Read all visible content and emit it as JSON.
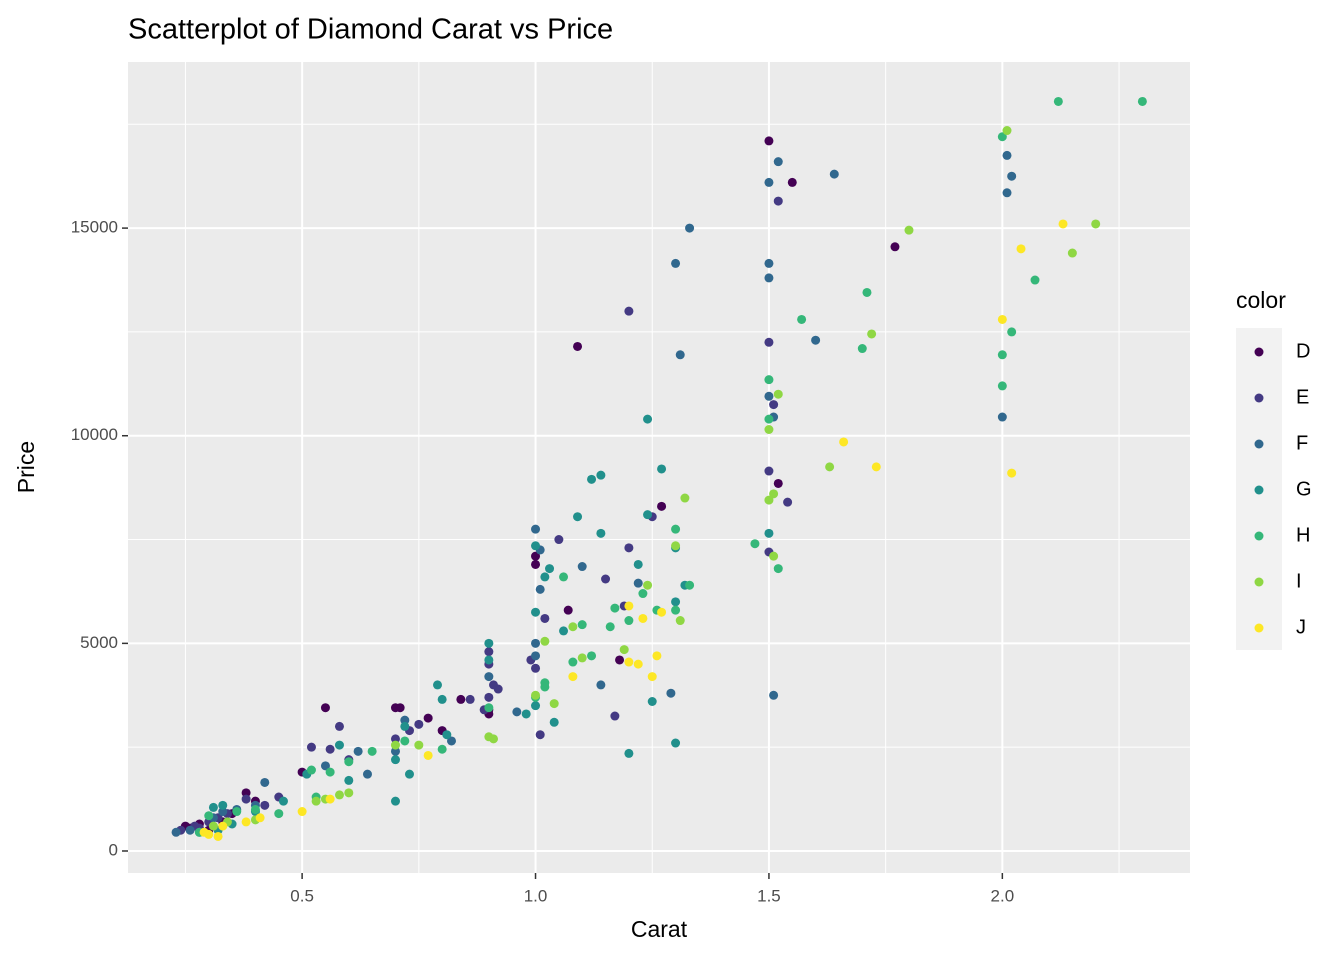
{
  "chart_data": {
    "type": "scatter",
    "title": "Scatterplot of Diamond Carat vs Price",
    "x_label": "Carat",
    "y_label": "Price",
    "legend_title": "color",
    "xlim": [
      0.127,
      2.402
    ],
    "ylim": [
      -530,
      19000
    ],
    "xticks": [
      0.5,
      {
        "value": 1,
        "label": "1.0"
      },
      1.5,
      {
        "value": 2,
        "label": "2.0"
      }
    ],
    "yticks": [
      0,
      5000,
      10000,
      15000
    ],
    "grid": true,
    "legend": "right",
    "series": [
      {
        "name": "D",
        "color": "#440154",
        "x": [
          1.5,
          1.55,
          1.77,
          1.09,
          1.52,
          1.27,
          1.0,
          1.0,
          1.07,
          1.18,
          0.9,
          0.84,
          0.7,
          0.71,
          0.55,
          0.77,
          0.8,
          0.38,
          0.35,
          0.3,
          0.28,
          0.25,
          0.26,
          0.33,
          0.4,
          0.5,
          0.9
        ],
        "values": [
          17100,
          16100,
          14550,
          12150,
          8850,
          8300,
          7100,
          6900,
          5800,
          4600,
          3400,
          3650,
          3450,
          3450,
          3450,
          3200,
          2900,
          1400,
          900,
          500,
          650,
          600,
          550,
          700,
          1200,
          1900,
          3300
        ]
      },
      {
        "name": "E",
        "color": "#443A83",
        "x": [
          1.2,
          1.5,
          1.52,
          1.51,
          1.5,
          1.54,
          1.5,
          1.25,
          1.2,
          1.05,
          1.15,
          1.02,
          1.0,
          1.01,
          1.17,
          0.9,
          0.9,
          0.91,
          0.9,
          0.92,
          0.89,
          0.86,
          0.75,
          0.73,
          0.7,
          0.58,
          0.56,
          0.52,
          0.6,
          0.45,
          0.42,
          0.38,
          0.34,
          0.32,
          0.3,
          0.28,
          0.24,
          0.27,
          1.19,
          0.99
        ],
        "values": [
          13000,
          12250,
          15650,
          10750,
          9150,
          8400,
          7200,
          8050,
          7300,
          7500,
          6550,
          5600,
          4400,
          2800,
          3250,
          4800,
          4500,
          4000,
          3700,
          3900,
          3400,
          3650,
          3050,
          2900,
          2700,
          3000,
          2450,
          2500,
          2200,
          1300,
          1100,
          1250,
          900,
          800,
          700,
          550,
          500,
          600,
          5900,
          4600
        ]
      },
      {
        "name": "F",
        "color": "#31688E",
        "x": [
          1.52,
          1.5,
          1.64,
          2.01,
          2.02,
          2.01,
          1.33,
          1.3,
          1.5,
          1.5,
          1.6,
          1.31,
          1.5,
          1.51,
          2.0,
          1.51,
          1.29,
          1.14,
          1.0,
          1.01,
          1.01,
          1.1,
          1.22,
          1.0,
          1.0,
          0.9,
          0.82,
          0.7,
          0.72,
          0.64,
          0.42,
          0.4,
          0.36,
          0.33,
          0.31,
          0.23,
          0.26,
          0.55,
          0.62,
          0.96
        ],
        "values": [
          16600,
          16100,
          16300,
          16750,
          16250,
          15850,
          15000,
          14150,
          14150,
          13800,
          12300,
          11950,
          10950,
          10450,
          10450,
          3750,
          3800,
          4000,
          7750,
          7250,
          6300,
          6850,
          6450,
          5000,
          4700,
          4200,
          2650,
          2400,
          3150,
          1850,
          1650,
          1100,
          1000,
          950,
          800,
          450,
          500,
          2050,
          2400,
          3350
        ]
      },
      {
        "name": "G",
        "color": "#21908C",
        "x": [
          1.24,
          1.27,
          1.12,
          1.14,
          1.09,
          1.24,
          1.3,
          1.32,
          1.14,
          1.0,
          1.03,
          1.06,
          1.02,
          1.22,
          1.3,
          1.5,
          1.2,
          1.3,
          1.04,
          1.0,
          0.9,
          0.9,
          0.79,
          0.8,
          0.81,
          0.72,
          0.7,
          0.7,
          0.73,
          0.6,
          0.58,
          0.51,
          0.46,
          0.4,
          0.33,
          0.31,
          0.35,
          0.28,
          0.32,
          1.0,
          1.25,
          0.98
        ],
        "values": [
          10400,
          9200,
          8950,
          9050,
          8050,
          8100,
          7300,
          6400,
          7650,
          5750,
          6800,
          5300,
          6600,
          6900,
          6000,
          7650,
          2350,
          2600,
          3100,
          3500,
          5000,
          4600,
          4000,
          3650,
          2800,
          3000,
          2200,
          1200,
          1850,
          1700,
          2550,
          1850,
          1200,
          950,
          1100,
          1050,
          650,
          450,
          500,
          7350,
          3600,
          3300
        ]
      },
      {
        "name": "H",
        "color": "#35B779",
        "x": [
          2.12,
          2.3,
          2.0,
          2.07,
          1.71,
          1.57,
          2.02,
          1.7,
          2.0,
          2.0,
          1.5,
          1.5,
          1.47,
          1.52,
          1.3,
          1.33,
          1.23,
          1.17,
          1.16,
          1.1,
          1.12,
          1.02,
          1.02,
          1.08,
          1.2,
          1.26,
          1.3,
          1.0,
          0.9,
          0.8,
          0.65,
          0.6,
          0.56,
          0.53,
          0.52,
          0.45,
          0.4,
          0.36,
          0.3,
          0.28,
          1.06,
          0.72
        ],
        "values": [
          18050,
          18050,
          17200,
          13750,
          13450,
          12800,
          12500,
          12100,
          11950,
          11200,
          11350,
          10400,
          7400,
          6800,
          7750,
          6400,
          6200,
          5850,
          5400,
          5450,
          4700,
          3950,
          4050,
          4550,
          5550,
          5800,
          5800,
          3700,
          3450,
          2450,
          2400,
          2150,
          1900,
          1300,
          1950,
          900,
          1000,
          950,
          850,
          450,
          6600,
          2650
        ]
      },
      {
        "name": "I",
        "color": "#8FD744",
        "x": [
          2.01,
          1.8,
          2.2,
          2.15,
          1.72,
          1.52,
          1.5,
          1.63,
          1.32,
          1.5,
          1.51,
          1.51,
          1.3,
          1.31,
          1.24,
          1.19,
          1.1,
          1.04,
          1.0,
          0.9,
          0.91,
          0.75,
          0.7,
          0.58,
          0.55,
          0.53,
          0.6,
          0.4,
          0.34,
          0.31,
          1.02,
          1.08
        ],
        "values": [
          17350,
          14950,
          15100,
          14400,
          12450,
          11000,
          10150,
          9250,
          8500,
          8450,
          8600,
          7100,
          7350,
          5550,
          6400,
          4850,
          4650,
          3550,
          3750,
          2750,
          2700,
          2550,
          2550,
          1350,
          1250,
          1200,
          1400,
          750,
          700,
          600,
          5050,
          5400
        ]
      },
      {
        "name": "J",
        "color": "#FDE725",
        "x": [
          2.13,
          2.04,
          2.0,
          1.66,
          1.73,
          2.02,
          1.2,
          1.27,
          1.23,
          1.26,
          1.2,
          1.22,
          1.25,
          1.08,
          0.77,
          0.56,
          0.5,
          0.41,
          0.38,
          0.33,
          0.3,
          0.32,
          0.29
        ],
        "values": [
          15100,
          14500,
          12800,
          9850,
          9250,
          9100,
          5900,
          5750,
          5600,
          4700,
          4550,
          4500,
          4200,
          4200,
          2300,
          1250,
          950,
          800,
          700,
          600,
          400,
          350,
          450
        ]
      }
    ]
  }
}
